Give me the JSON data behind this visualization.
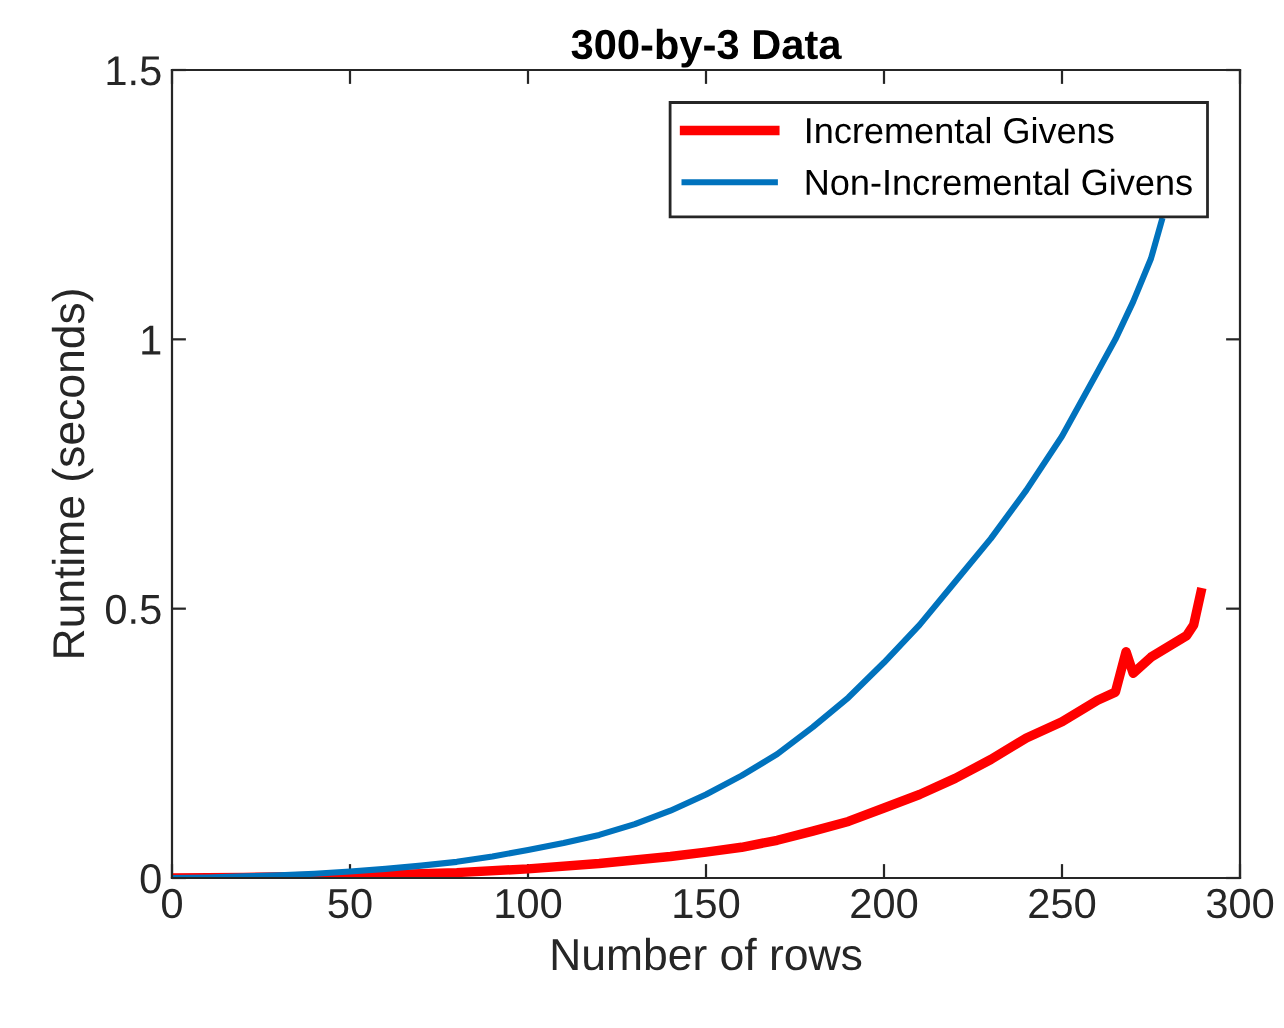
{
  "chart_data": {
    "type": "line",
    "title": "300-by-3 Data",
    "xlabel": "Number of rows",
    "ylabel": "Runtime (seconds)",
    "xlim": [
      0,
      300
    ],
    "xticks": [
      0,
      50,
      100,
      150,
      200,
      250,
      300
    ],
    "ylim": [
      0,
      1.5
    ],
    "yticks": [
      0,
      0.5,
      1,
      1.5
    ],
    "grid": false,
    "legend": "top right",
    "series": [
      {
        "name": "Incremental Givens",
        "color": "#ff0000",
        "x": [
          0,
          20,
          40,
          60,
          80,
          100,
          120,
          140,
          150,
          160,
          170,
          180,
          190,
          200,
          210,
          220,
          230,
          240,
          250,
          260,
          265,
          268,
          270,
          275,
          280,
          285,
          287,
          289
        ],
        "values": [
          0,
          0.001,
          0.003,
          0.006,
          0.01,
          0.017,
          0.027,
          0.04,
          0.048,
          0.057,
          0.07,
          0.087,
          0.105,
          0.13,
          0.155,
          0.185,
          0.22,
          0.26,
          0.29,
          0.33,
          0.345,
          0.42,
          0.38,
          0.41,
          0.43,
          0.45,
          0.47,
          0.53
        ]
      },
      {
        "name": "Non-Incremental Givens",
        "color": "#0072bd",
        "x": [
          0,
          10,
          20,
          30,
          40,
          50,
          60,
          70,
          80,
          90,
          100,
          110,
          120,
          130,
          140,
          150,
          160,
          170,
          180,
          190,
          200,
          210,
          220,
          230,
          240,
          250,
          260,
          265,
          270,
          275,
          278
        ],
        "values": [
          0,
          0.001,
          0.003,
          0.005,
          0.008,
          0.012,
          0.017,
          0.023,
          0.03,
          0.04,
          0.052,
          0.065,
          0.08,
          0.1,
          0.125,
          0.155,
          0.19,
          0.23,
          0.28,
          0.335,
          0.4,
          0.47,
          0.55,
          0.63,
          0.72,
          0.82,
          0.94,
          1.0,
          1.07,
          1.15,
          1.22
        ]
      }
    ]
  }
}
